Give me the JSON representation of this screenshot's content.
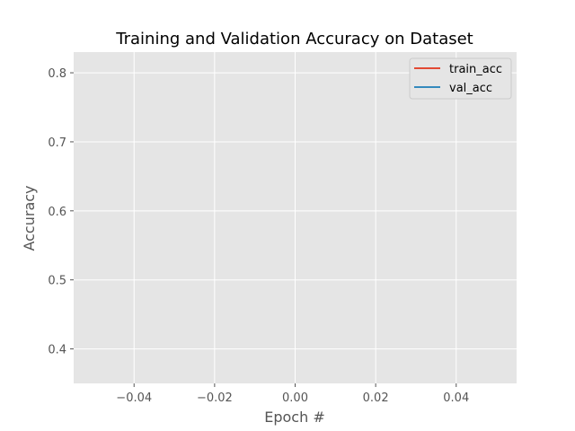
{
  "chart_data": {
    "type": "line",
    "title": "Training and Validation Accuracy on Dataset",
    "xlabel": "Epoch #",
    "ylabel": "Accuracy",
    "xlim": [
      -0.055,
      0.055
    ],
    "ylim": [
      0.35,
      0.83
    ],
    "x_ticks": [
      -0.04,
      -0.02,
      0.0,
      0.02,
      0.04
    ],
    "x_tick_labels": [
      "−0.04",
      "−0.02",
      "0.00",
      "0.02",
      "0.04"
    ],
    "y_ticks": [
      0.4,
      0.5,
      0.6,
      0.7,
      0.8
    ],
    "y_tick_labels": [
      "0.4",
      "0.5",
      "0.6",
      "0.7",
      "0.8"
    ],
    "grid": true,
    "legend_position": "top-right",
    "series": [
      {
        "name": "train_acc",
        "color": "#e24a33",
        "x": [],
        "y": []
      },
      {
        "name": "val_acc",
        "color": "#348abd",
        "x": [],
        "y": []
      }
    ],
    "plot_background": "#e5e5e5"
  }
}
